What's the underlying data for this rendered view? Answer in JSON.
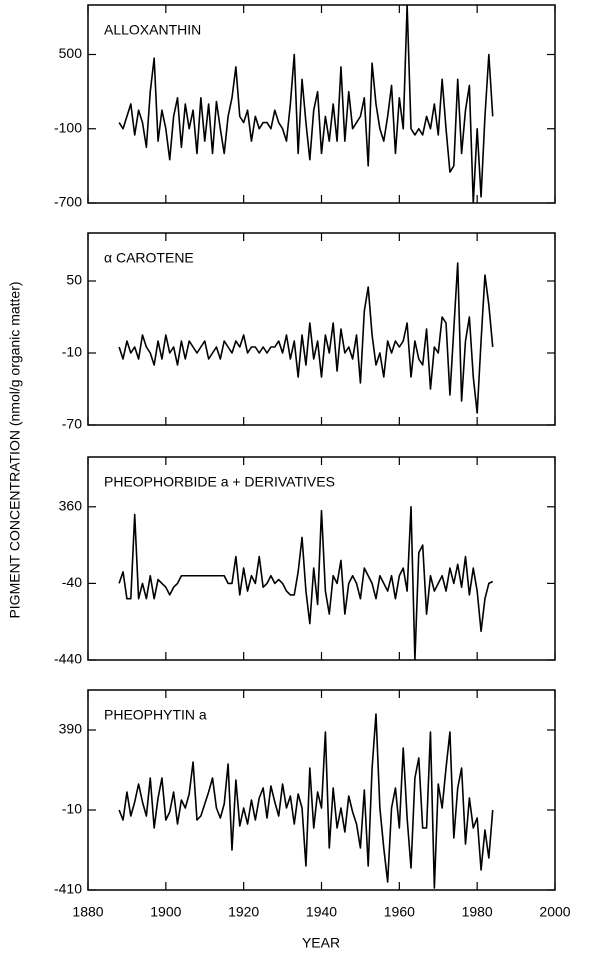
{
  "chart_data": {
    "type": "line",
    "ylabel": "PIGMENT CONCENTRATION (nmol/g organic matter)",
    "xlabel": "YEAR",
    "color": "#000000",
    "xlim": [
      1880,
      2000
    ],
    "xticks": [
      1880,
      1900,
      1920,
      1940,
      1960,
      1980,
      2000
    ],
    "x": [
      1888,
      1889,
      1890,
      1891,
      1892,
      1893,
      1894,
      1895,
      1896,
      1897,
      1898,
      1899,
      1900,
      1901,
      1902,
      1903,
      1904,
      1905,
      1906,
      1907,
      1908,
      1909,
      1910,
      1911,
      1912,
      1913,
      1914,
      1915,
      1916,
      1917,
      1918,
      1919,
      1920,
      1921,
      1922,
      1923,
      1924,
      1925,
      1926,
      1927,
      1928,
      1929,
      1930,
      1931,
      1932,
      1933,
      1934,
      1935,
      1936,
      1937,
      1938,
      1939,
      1940,
      1941,
      1942,
      1943,
      1944,
      1945,
      1946,
      1947,
      1948,
      1949,
      1950,
      1951,
      1952,
      1953,
      1954,
      1955,
      1956,
      1957,
      1958,
      1959,
      1960,
      1961,
      1962,
      1963,
      1964,
      1965,
      1966,
      1967,
      1968,
      1969,
      1970,
      1971,
      1972,
      1973,
      1974,
      1975,
      1976,
      1977,
      1978,
      1979,
      1980,
      1981,
      1982,
      1983,
      1984
    ],
    "panels": [
      {
        "title": "ALLOXANTHIN",
        "ylim": [
          -700,
          900
        ],
        "yticks": [
          -700,
          -100,
          500
        ],
        "values": [
          -50,
          -100,
          0,
          100,
          -150,
          50,
          -50,
          -250,
          200,
          470,
          -200,
          50,
          -100,
          -350,
          0,
          150,
          -250,
          100,
          -100,
          50,
          -300,
          150,
          -200,
          100,
          -300,
          120,
          -100,
          -300,
          0,
          150,
          400,
          0,
          -50,
          50,
          -200,
          0,
          -100,
          -50,
          -50,
          -100,
          50,
          -50,
          -100,
          -200,
          100,
          500,
          -300,
          300,
          -50,
          -350,
          50,
          200,
          -300,
          0,
          -200,
          100,
          -200,
          400,
          -200,
          200,
          -100,
          -50,
          0,
          150,
          -400,
          430,
          100,
          -100,
          -200,
          0,
          250,
          -300,
          150,
          -100,
          900,
          -100,
          -150,
          -100,
          -150,
          0,
          -100,
          100,
          -150,
          300,
          -100,
          -450,
          -400,
          300,
          -300,
          50,
          250,
          -700,
          -100,
          -650,
          0,
          500,
          0
        ]
      },
      {
        "title": "α CAROTENE",
        "ylim": [
          -70,
          90
        ],
        "yticks": [
          -70,
          -10,
          50
        ],
        "values": [
          -5,
          -15,
          0,
          -10,
          -5,
          -15,
          5,
          -5,
          -10,
          -20,
          0,
          -15,
          5,
          -10,
          -5,
          -20,
          0,
          -15,
          0,
          -5,
          -10,
          -5,
          0,
          -15,
          -10,
          -5,
          -15,
          0,
          -5,
          -10,
          0,
          -5,
          5,
          -10,
          -5,
          -5,
          -10,
          -5,
          -10,
          -5,
          -5,
          0,
          -10,
          5,
          -15,
          0,
          -30,
          5,
          -20,
          15,
          -15,
          0,
          -30,
          5,
          -10,
          15,
          -25,
          10,
          -10,
          -5,
          -15,
          5,
          -35,
          25,
          45,
          5,
          -20,
          -10,
          -30,
          0,
          -10,
          0,
          -5,
          0,
          15,
          -30,
          0,
          -15,
          -20,
          10,
          -40,
          -5,
          -10,
          20,
          15,
          -45,
          10,
          65,
          -50,
          0,
          20,
          -30,
          -60,
          0,
          55,
          30,
          -5
        ]
      },
      {
        "title": "PHEOPHORBIDE a + DERIVATIVES",
        "ylim": [
          -440,
          620
        ],
        "yticks": [
          -440,
          -40,
          360
        ],
        "values": [
          -40,
          20,
          -120,
          -120,
          320,
          -120,
          -40,
          -120,
          0,
          -120,
          -20,
          -40,
          -60,
          -100,
          -60,
          -40,
          0,
          0,
          0,
          0,
          0,
          0,
          0,
          0,
          0,
          0,
          0,
          0,
          -40,
          -40,
          100,
          -100,
          40,
          -80,
          0,
          -40,
          100,
          -60,
          -40,
          0,
          -40,
          -20,
          -40,
          -80,
          -100,
          -100,
          20,
          200,
          -80,
          -250,
          40,
          -150,
          340,
          -80,
          -200,
          0,
          -40,
          80,
          -200,
          -40,
          0,
          -40,
          -120,
          40,
          0,
          -40,
          -120,
          0,
          -40,
          -80,
          0,
          -120,
          0,
          40,
          -80,
          360,
          -440,
          120,
          160,
          -200,
          0,
          -80,
          -40,
          0,
          -80,
          40,
          -40,
          60,
          -60,
          100,
          -100,
          40,
          -80,
          -290,
          -120,
          -40,
          -30
        ]
      },
      {
        "title": "PHEOPHYTIN a",
        "ylim": [
          -410,
          590
        ],
        "yticks": [
          -410,
          -10,
          390
        ],
        "values": [
          -10,
          -60,
          80,
          -40,
          30,
          120,
          30,
          -40,
          150,
          -100,
          50,
          150,
          -60,
          -20,
          80,
          -80,
          40,
          0,
          70,
          230,
          -60,
          -40,
          20,
          80,
          150,
          0,
          -50,
          20,
          220,
          -210,
          140,
          -90,
          0,
          -80,
          40,
          -60,
          50,
          100,
          -50,
          110,
          30,
          -40,
          120,
          0,
          60,
          -80,
          70,
          0,
          -290,
          200,
          -100,
          80,
          0,
          380,
          -200,
          100,
          -100,
          0,
          -120,
          60,
          -20,
          -80,
          -200,
          90,
          -290,
          200,
          470,
          0,
          -200,
          -370,
          0,
          100,
          -100,
          300,
          -50,
          -300,
          150,
          250,
          -100,
          -100,
          380,
          -400,
          120,
          0,
          200,
          380,
          -150,
          100,
          200,
          -180,
          50,
          -100,
          -50,
          -310,
          -110,
          -250,
          -10
        ]
      }
    ]
  }
}
